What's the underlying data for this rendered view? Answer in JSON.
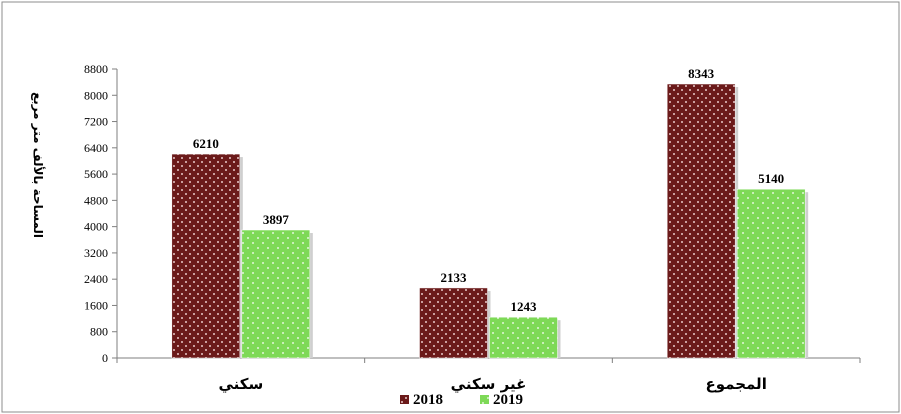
{
  "chart_data": {
    "type": "bar",
    "categories": [
      "سكني",
      "غير سكني",
      "المجموع"
    ],
    "series": [
      {
        "name": "2018",
        "values": [
          6210,
          2133,
          8343
        ],
        "color": "#6b1a1a"
      },
      {
        "name": "2019",
        "values": [
          3897,
          1243,
          5140
        ],
        "color": "#7ed957"
      }
    ],
    "ylabel": "المساحة بالألف متر مربع",
    "ylim": [
      0,
      8800
    ],
    "yticks": [
      0,
      800,
      1600,
      2400,
      3200,
      4000,
      4800,
      5600,
      6400,
      7200,
      8000,
      8800
    ],
    "grid": false,
    "legend": "bottom"
  }
}
